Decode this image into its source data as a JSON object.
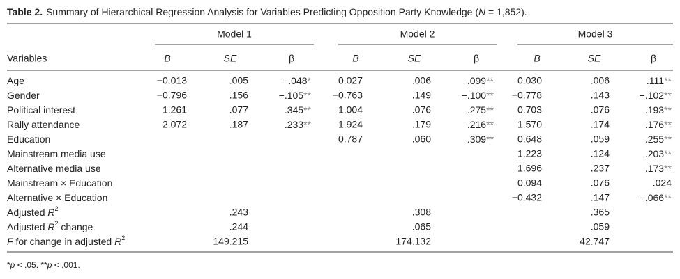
{
  "caption": {
    "label": "Table 2.",
    "before": "Summary of Hierarchical Regression Analysis for Variables Predicting Opposition Party Knowledge (",
    "n": "N",
    "after": " = 1,852)."
  },
  "header": {
    "variables": "Variables",
    "models": [
      "Model 1",
      "Model 2",
      "Model 3"
    ],
    "stats": [
      "B",
      "SE",
      "β"
    ]
  },
  "rows": [
    {
      "label": [
        {
          "text": "Age"
        }
      ],
      "cells": [
        "−0.013",
        ".005",
        "−.048*",
        "0.027",
        ".006",
        ".099**",
        "0.030",
        ".006",
        ".111**"
      ]
    },
    {
      "label": [
        {
          "text": "Gender"
        }
      ],
      "cells": [
        "−0.796",
        ".156",
        "−.105**",
        "−0.763",
        ".149",
        "−.100**",
        "−0.778",
        ".143",
        "−.102**"
      ]
    },
    {
      "label": [
        {
          "text": "Political interest"
        }
      ],
      "cells": [
        "1.261",
        ".077",
        ".345**",
        "1.004",
        ".076",
        ".275**",
        "0.703",
        ".076",
        ".193**"
      ]
    },
    {
      "label": [
        {
          "text": "Rally attendance"
        }
      ],
      "cells": [
        "2.072",
        ".187",
        ".233**",
        "1.924",
        ".179",
        ".216**",
        "1.570",
        ".174",
        ".176**"
      ]
    },
    {
      "label": [
        {
          "text": "Education"
        }
      ],
      "cells": [
        null,
        null,
        null,
        "0.787",
        ".060",
        ".309**",
        "0.648",
        ".059",
        ".255**"
      ]
    },
    {
      "label": [
        {
          "text": "Mainstream media use"
        }
      ],
      "cells": [
        null,
        null,
        null,
        null,
        null,
        null,
        "1.223",
        ".124",
        ".203**"
      ]
    },
    {
      "label": [
        {
          "text": "Alternative media use"
        }
      ],
      "cells": [
        null,
        null,
        null,
        null,
        null,
        null,
        "1.696",
        ".237",
        ".173**"
      ]
    },
    {
      "label": [
        {
          "text": "Mainstream × Education"
        }
      ],
      "cells": [
        null,
        null,
        null,
        null,
        null,
        null,
        "0.094",
        ".076",
        ".024"
      ]
    },
    {
      "label": [
        {
          "text": "Alternative × Education"
        }
      ],
      "cells": [
        null,
        null,
        null,
        null,
        null,
        null,
        "−0.432",
        ".147",
        "−.066**"
      ]
    },
    {
      "label": [
        {
          "text": "Adjusted "
        },
        {
          "text": "R",
          "italic": true
        },
        {
          "text": "2",
          "sup": true
        }
      ],
      "cells": [
        null,
        ".243",
        null,
        null,
        ".308",
        null,
        null,
        ".365",
        null
      ]
    },
    {
      "label": [
        {
          "text": "Adjusted "
        },
        {
          "text": "R",
          "italic": true
        },
        {
          "text": "2",
          "sup": true
        },
        {
          "text": " change"
        }
      ],
      "cells": [
        null,
        ".244",
        null,
        null,
        ".065",
        null,
        null,
        ".059",
        null
      ]
    },
    {
      "label": [
        {
          "text": "F",
          "italic": true
        },
        {
          "text": " for change in adjusted "
        },
        {
          "text": "R",
          "italic": true
        },
        {
          "text": "2",
          "sup": true
        }
      ],
      "cells": [
        null,
        "149.215",
        null,
        null,
        "174.132",
        null,
        null,
        "42.747",
        null
      ]
    }
  ],
  "footnote": [
    {
      "text": "*"
    },
    {
      "text": "p",
      "italic": true
    },
    {
      "text": " < .05. **"
    },
    {
      "text": "p",
      "italic": true
    },
    {
      "text": " < .001."
    }
  ]
}
